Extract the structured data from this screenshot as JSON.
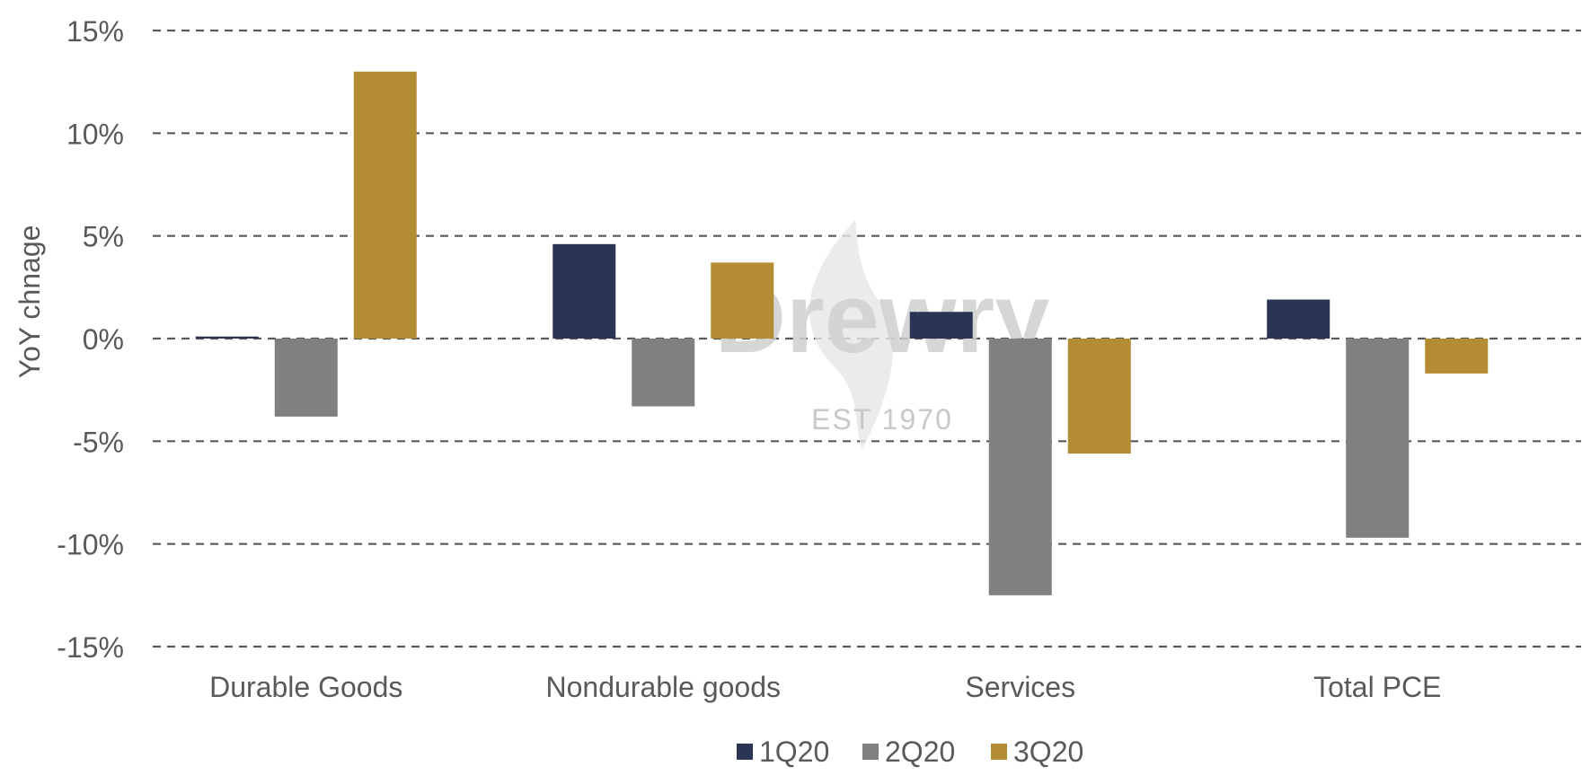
{
  "chart_data": {
    "type": "bar",
    "categories": [
      "Durable Goods",
      "Nondurable goods",
      "Services",
      "Total PCE"
    ],
    "series": [
      {
        "name": "1Q20",
        "color": "#2B3553",
        "values": [
          0.1,
          4.6,
          1.3,
          1.9
        ]
      },
      {
        "name": "2Q20",
        "color": "#808080",
        "values": [
          -3.8,
          -3.3,
          -12.5,
          -9.7
        ]
      },
      {
        "name": "3Q20",
        "color": "#B48C33",
        "values": [
          13.0,
          3.7,
          -5.6,
          -1.7
        ]
      }
    ],
    "ylabel": "YoY chnage",
    "ylim": [
      -15,
      15
    ],
    "yticks": [
      15,
      10,
      5,
      0,
      -5,
      -10,
      -15
    ],
    "ytick_labels": [
      "15%",
      "10%",
      "5%",
      "0%",
      "-5%",
      "-10%",
      "-15%"
    ],
    "grid": true,
    "grid_style": "dashed",
    "legend_position": "bottom-center"
  },
  "watermark": {
    "brand": "Drewry",
    "tagline": "EST 1970"
  }
}
